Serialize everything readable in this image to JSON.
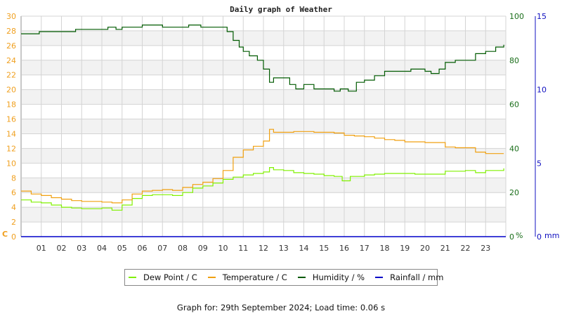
{
  "title": "Daily graph of Weather",
  "footer": "Graph for: 29th September 2024; Load time: 0.06 s",
  "colors": {
    "dew_point": "#80f000",
    "temperature": "#f0a010",
    "humidity": "#005a00",
    "rainfall": "#0000c8",
    "grid": "#d4d4d4",
    "band": "#f2f2f2",
    "left_axis": "#f0a020",
    "right_axis": "#1a6e1a",
    "rain_axis": "#1010c0"
  },
  "axes": {
    "left_unit": "C",
    "right_unit": "%",
    "rain_unit": "mm"
  },
  "legend": [
    {
      "label": "Dew Point / C",
      "color": "#80f000"
    },
    {
      "label": "Temperature / C",
      "color": "#f0a010"
    },
    {
      "label": "Humidity / %",
      "color": "#005a00"
    },
    {
      "label": "Rainfall / mm",
      "color": "#0000c8"
    }
  ],
  "chart_data": {
    "type": "line",
    "title": "Daily graph of Weather",
    "xlabel": "",
    "x_ticks": [
      "01",
      "02",
      "03",
      "04",
      "05",
      "06",
      "07",
      "08",
      "09",
      "10",
      "11",
      "12",
      "13",
      "14",
      "15",
      "16",
      "17",
      "18",
      "19",
      "20",
      "21",
      "22",
      "23"
    ],
    "xlim": [
      0,
      24
    ],
    "y_left": {
      "label": "C",
      "ticks": [
        0,
        2,
        4,
        6,
        8,
        10,
        12,
        14,
        16,
        18,
        20,
        22,
        24,
        26,
        28,
        30
      ],
      "ylim": [
        0,
        30
      ]
    },
    "y_right": {
      "label": "%",
      "ticks": [
        0,
        20,
        40,
        60,
        80,
        100
      ],
      "ylim": [
        0,
        100
      ]
    },
    "y_rain": {
      "label": "mm",
      "ticks": [
        0,
        5,
        10,
        15
      ],
      "ylim": [
        0,
        15
      ]
    },
    "grid": true,
    "legend_position": "bottom",
    "series": [
      {
        "name": "Dew Point / C",
        "axis": "left",
        "x": [
          0,
          0.5,
          1,
          1.5,
          2,
          2.5,
          3,
          3.5,
          4,
          4.5,
          5,
          5.5,
          6,
          6.5,
          7,
          7.5,
          8,
          8.5,
          9,
          9.5,
          10,
          10.5,
          11,
          11.5,
          12,
          12.3,
          12.5,
          13,
          13.5,
          14,
          14.5,
          15,
          15.5,
          15.9,
          16.3,
          17,
          17.5,
          18,
          18.5,
          19,
          19.5,
          20,
          20.5,
          21,
          21.5,
          22,
          22.5,
          23,
          23.9
        ],
        "values": [
          5.0,
          4.7,
          4.6,
          4.3,
          4.0,
          3.9,
          3.8,
          3.8,
          3.9,
          3.6,
          4.3,
          5.2,
          5.6,
          5.7,
          5.7,
          5.6,
          6.0,
          6.6,
          6.9,
          7.3,
          7.8,
          8.1,
          8.4,
          8.6,
          8.8,
          9.4,
          9.1,
          9.0,
          8.7,
          8.6,
          8.5,
          8.3,
          8.2,
          7.6,
          8.2,
          8.4,
          8.5,
          8.6,
          8.6,
          8.6,
          8.5,
          8.5,
          8.5,
          8.9,
          8.9,
          9.0,
          8.7,
          9.0,
          9.3
        ]
      },
      {
        "name": "Temperature / C",
        "axis": "left",
        "x": [
          0,
          0.5,
          1,
          1.5,
          2,
          2.5,
          3,
          3.5,
          4,
          4.5,
          5,
          5.5,
          6,
          6.5,
          7,
          7.5,
          8,
          8.5,
          9,
          9.5,
          10,
          10.5,
          11,
          11.5,
          12,
          12.3,
          12.5,
          13,
          13.5,
          14,
          14.5,
          15,
          15.5,
          16,
          16.5,
          17,
          17.5,
          18,
          18.5,
          19,
          19.5,
          20,
          20.5,
          21,
          21.5,
          22,
          22.5,
          23,
          23.9
        ],
        "values": [
          6.2,
          5.8,
          5.6,
          5.3,
          5.1,
          4.9,
          4.8,
          4.8,
          4.7,
          4.6,
          5.0,
          5.8,
          6.2,
          6.3,
          6.4,
          6.3,
          6.7,
          7.1,
          7.4,
          7.9,
          9.0,
          10.8,
          11.8,
          12.3,
          13.0,
          14.6,
          14.2,
          14.2,
          14.3,
          14.3,
          14.2,
          14.2,
          14.1,
          13.8,
          13.7,
          13.6,
          13.4,
          13.2,
          13.1,
          12.9,
          12.9,
          12.8,
          12.8,
          12.2,
          12.1,
          12.1,
          11.5,
          11.3,
          11.3
        ]
      },
      {
        "name": "Humidity / %",
        "axis": "right",
        "x": [
          0,
          0.7,
          0.9,
          2.5,
          2.7,
          3.8,
          4.3,
          4.7,
          5.0,
          5.5,
          6,
          7,
          7.8,
          8.3,
          8.9,
          9.5,
          10.0,
          10.2,
          10.5,
          10.8,
          11,
          11.3,
          11.7,
          12,
          12.3,
          12.5,
          12.8,
          13.3,
          13.6,
          14,
          14.5,
          15,
          15.5,
          15.8,
          16.2,
          16.6,
          17,
          17.5,
          18,
          18.5,
          19,
          19.3,
          20,
          20.3,
          20.7,
          21,
          21.5,
          22,
          22.5,
          23,
          23.5,
          23.9
        ],
        "values": [
          92,
          92,
          93,
          93,
          94,
          94,
          95,
          94,
          95,
          95,
          96,
          95,
          95,
          96,
          95,
          95,
          95,
          93,
          89,
          86,
          84,
          82,
          80,
          76,
          70,
          72,
          72,
          69,
          67,
          69,
          67,
          67,
          66,
          67,
          66,
          70,
          71,
          73,
          75,
          75,
          75,
          76,
          75,
          74,
          76,
          79,
          80,
          80,
          83,
          84,
          86,
          87
        ]
      },
      {
        "name": "Rainfall / mm",
        "axis": "rain",
        "x": [
          0,
          24
        ],
        "values": [
          0,
          0
        ]
      }
    ]
  }
}
